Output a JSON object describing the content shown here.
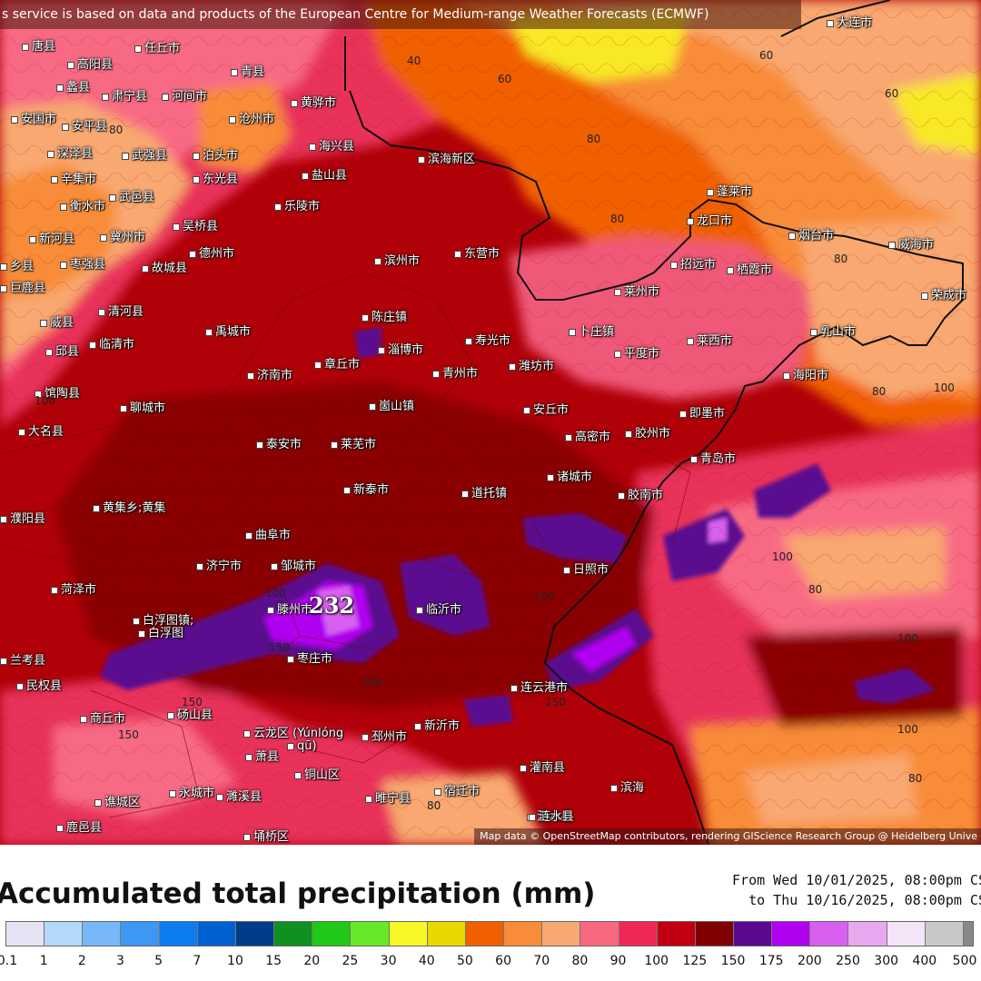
{
  "banner_text": "s service is based on data and products of the European Centre for Medium-range Weather Forecasts (ECMWF)",
  "attribution": "Map data © OpenStreetMap contributors, rendering GIScience Research Group @ Heidelberg Unive",
  "title": "Accumulated total precipitation (mm)",
  "range_from": "From Wed 10/01/2025, 08:00pm CS",
  "range_to": "to Thu 10/16/2025, 08:00pm CS",
  "max_value": "232",
  "colorbar": {
    "ticks": [
      "0.1",
      "1",
      "2",
      "3",
      "5",
      "7",
      "10",
      "15",
      "20",
      "25",
      "30",
      "40",
      "50",
      "60",
      "70",
      "80",
      "90",
      "100",
      "125",
      "150",
      "175",
      "200",
      "250",
      "300",
      "400",
      "500"
    ],
    "colors": [
      "#e4e4f4",
      "#b4d8fc",
      "#78b8f8",
      "#3c98f4",
      "#0c7cf0",
      "#0060d0",
      "#003c88",
      "#109020",
      "#20c818",
      "#68e828",
      "#f8f828",
      "#e8d800",
      "#f06000",
      "#f88c38",
      "#f8a870",
      "#f86880",
      "#f02858",
      "#c00010",
      "#800000",
      "#5a0890",
      "#b000f0",
      "#d860f0",
      "#e8a8f0",
      "#f4e4f8",
      "#c8c8c8"
    ],
    "end_color": "#888888"
  },
  "cities": [
    {
      "name": "唐县"
    },
    {
      "name": "任丘市"
    },
    {
      "name": "高阳县"
    },
    {
      "name": "青县"
    },
    {
      "name": "蠡县"
    },
    {
      "name": "肃宁县"
    },
    {
      "name": "河间市"
    },
    {
      "name": "黄骅市"
    },
    {
      "name": "安国市"
    },
    {
      "name": "安平县"
    },
    {
      "name": "沧州市"
    },
    {
      "name": "海兴县"
    },
    {
      "name": "深泽县"
    },
    {
      "name": "武强县"
    },
    {
      "name": "泊头市"
    },
    {
      "name": "盐山县"
    },
    {
      "name": "辛集市"
    },
    {
      "name": "东光县"
    },
    {
      "name": "武邑县"
    },
    {
      "name": "衡水市"
    },
    {
      "name": "乐陵市"
    },
    {
      "name": "吴桥县"
    },
    {
      "name": "新河县"
    },
    {
      "name": "冀州市"
    },
    {
      "name": "德州市"
    },
    {
      "name": "枣强县"
    },
    {
      "name": "故城县"
    },
    {
      "name": "滨州市"
    },
    {
      "name": "东营市"
    },
    {
      "name": "巨鹿县"
    },
    {
      "name": "清河县"
    },
    {
      "name": "陈庄镇"
    },
    {
      "name": "威县"
    },
    {
      "name": "禹城市"
    },
    {
      "name": "淄博市"
    },
    {
      "name": "寿光市"
    },
    {
      "name": "章丘市"
    },
    {
      "name": "临清市"
    },
    {
      "name": "邱县"
    },
    {
      "name": "济南市"
    },
    {
      "name": "青州市"
    },
    {
      "name": "潍坊市"
    },
    {
      "name": "馆陶县"
    },
    {
      "name": "聊城市"
    },
    {
      "name": "崮山镇"
    },
    {
      "name": "安丘市"
    },
    {
      "name": "大名县"
    },
    {
      "name": "泰安市"
    },
    {
      "name": "莱芜市"
    },
    {
      "name": "新泰市"
    },
    {
      "name": "道托镇"
    },
    {
      "name": "濮阳县"
    },
    {
      "name": "黄集乡;黄集"
    },
    {
      "name": "曲阜市"
    },
    {
      "name": "济宁市"
    },
    {
      "name": "邹城市"
    },
    {
      "name": "菏泽市"
    },
    {
      "name": "白浮图镇;"
    },
    {
      "name": "白浮图"
    },
    {
      "name": "滕州市"
    },
    {
      "name": "临沂市"
    },
    {
      "name": "兰考县"
    },
    {
      "name": "枣庄市"
    },
    {
      "name": "民权县"
    },
    {
      "name": "商丘市"
    },
    {
      "name": "砀山县"
    },
    {
      "name": "云龙区 (Yúnlóng"
    },
    {
      "name": "qū)"
    },
    {
      "name": "萧县"
    },
    {
      "name": "邳州市"
    },
    {
      "name": "新沂市"
    },
    {
      "name": "铜山区"
    },
    {
      "name": "永城市"
    },
    {
      "name": "濉溪县"
    },
    {
      "name": "睢宁县"
    },
    {
      "name": "宿迁市"
    },
    {
      "name": "谯城区"
    },
    {
      "name": "鹿邑县"
    },
    {
      "name": "埇桥区"
    },
    {
      "name": "泗水县"
    },
    {
      "name": "蓬莱市"
    },
    {
      "name": "龙口市"
    },
    {
      "name": "烟台市"
    },
    {
      "name": "威海市"
    },
    {
      "name": "招远市"
    },
    {
      "name": "栖霞市"
    },
    {
      "name": "荣成市"
    },
    {
      "name": "莱州市"
    },
    {
      "name": "乳山市"
    },
    {
      "name": "卜庄镇"
    },
    {
      "name": "平度市"
    },
    {
      "name": "莱西市"
    },
    {
      "name": "海阳市"
    },
    {
      "name": "即墨市"
    },
    {
      "name": "高密市"
    },
    {
      "name": "胶州市"
    },
    {
      "name": "青岛市"
    },
    {
      "name": "诸城市"
    },
    {
      "name": "胶南市"
    },
    {
      "name": "日照市"
    },
    {
      "name": "连云港市"
    },
    {
      "name": "灌南县"
    },
    {
      "name": "滨海"
    },
    {
      "name": "涟水县"
    },
    {
      "name": "大连市"
    },
    {
      "name": "滨海新区"
    },
    {
      "name": "乡县"
    }
  ],
  "contour_labels": [
    "60",
    "60",
    "60",
    "80",
    "80",
    "80",
    "80",
    "80",
    "80",
    "80",
    "80",
    "100",
    "100",
    "100",
    "100",
    "100",
    "100",
    "100",
    "100",
    "150",
    "150",
    "150",
    "150",
    "40",
    "70",
    "60",
    "60"
  ]
}
